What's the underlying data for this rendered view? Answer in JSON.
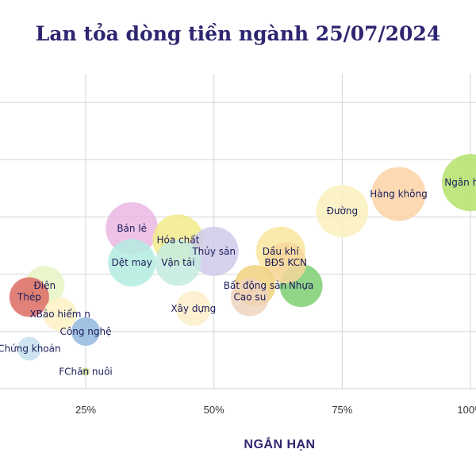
{
  "chart_data": {
    "type": "scatter",
    "title": "Lan tỏa dòng tiền ngành 25/07/2024",
    "xlabel": "NGẮN HẠN",
    "ylabel": "",
    "xlim": [
      -0.06,
      1.0
    ],
    "ylim": [
      0.0,
      0.55
    ],
    "grid": true,
    "x_ticks": [
      {
        "value": 0.25,
        "label": "25%"
      },
      {
        "value": 0.5,
        "label": "50%"
      },
      {
        "value": 0.75,
        "label": "75%"
      },
      {
        "value": 1.0,
        "label": "100%"
      }
    ],
    "y_ticks": [
      0.0,
      0.1,
      0.2,
      0.3,
      0.4,
      0.5
    ],
    "points": [
      {
        "label": "Ngân hàng",
        "x": 1.0,
        "y": 0.36,
        "size": 36,
        "color": "#b5e26b"
      },
      {
        "label": "Hàng không",
        "x": 0.86,
        "y": 0.34,
        "size": 34,
        "color": "#fcd2a6"
      },
      {
        "label": "Đường",
        "x": 0.75,
        "y": 0.31,
        "size": 33,
        "color": "#faf1bd"
      },
      {
        "label": "Bán lẻ",
        "x": 0.34,
        "y": 0.28,
        "size": 33,
        "color": "#eab7e2"
      },
      {
        "label": "Hóa chất",
        "x": 0.43,
        "y": 0.26,
        "size": 32,
        "color": "#f2ea8a"
      },
      {
        "label": "Thủy sản",
        "x": 0.5,
        "y": 0.24,
        "size": 31,
        "color": "#cfcaea"
      },
      {
        "label": "Dầu khí",
        "x": 0.63,
        "y": 0.24,
        "size": 31,
        "color": "#f9e89e"
      },
      {
        "label": "BĐS KCN",
        "x": 0.64,
        "y": 0.22,
        "size": 26,
        "color": "#f5d79c"
      },
      {
        "label": "Dệt may",
        "x": 0.34,
        "y": 0.22,
        "size": 30,
        "color": "#b3ecdf"
      },
      {
        "label": "Vận tải",
        "x": 0.43,
        "y": 0.22,
        "size": 29,
        "color": "#c4ebe1"
      },
      {
        "label": "Bất động sản",
        "x": 0.58,
        "y": 0.18,
        "size": 26,
        "color": "#f0d17d"
      },
      {
        "label": "Nhựa",
        "x": 0.67,
        "y": 0.18,
        "size": 27,
        "color": "#7ece72"
      },
      {
        "label": "Cao su",
        "x": 0.57,
        "y": 0.16,
        "size": 24,
        "color": "#efd3bd"
      },
      {
        "label": "Xây dựng",
        "x": 0.46,
        "y": 0.14,
        "size": 22,
        "color": "#fbefc8"
      },
      {
        "label": "Điện",
        "x": 0.17,
        "y": 0.18,
        "size": 25,
        "color": "#e8f4c3"
      },
      {
        "label": "Thép",
        "x": 0.14,
        "y": 0.16,
        "size": 25,
        "color": "#dc6b63"
      },
      {
        "label": "XBảo hiểm n",
        "x": 0.2,
        "y": 0.13,
        "size": 21,
        "color": "#fdf2c4"
      },
      {
        "label": "Công nghệ",
        "x": 0.25,
        "y": 0.1,
        "size": 18,
        "color": "#93b9df"
      },
      {
        "label": "Chứng khoán",
        "x": 0.14,
        "y": 0.07,
        "size": 15,
        "color": "#c5e0ef"
      },
      {
        "label": "FChăn nuôi",
        "x": 0.25,
        "y": 0.03,
        "size": 5,
        "color": "#c7db88"
      }
    ]
  }
}
